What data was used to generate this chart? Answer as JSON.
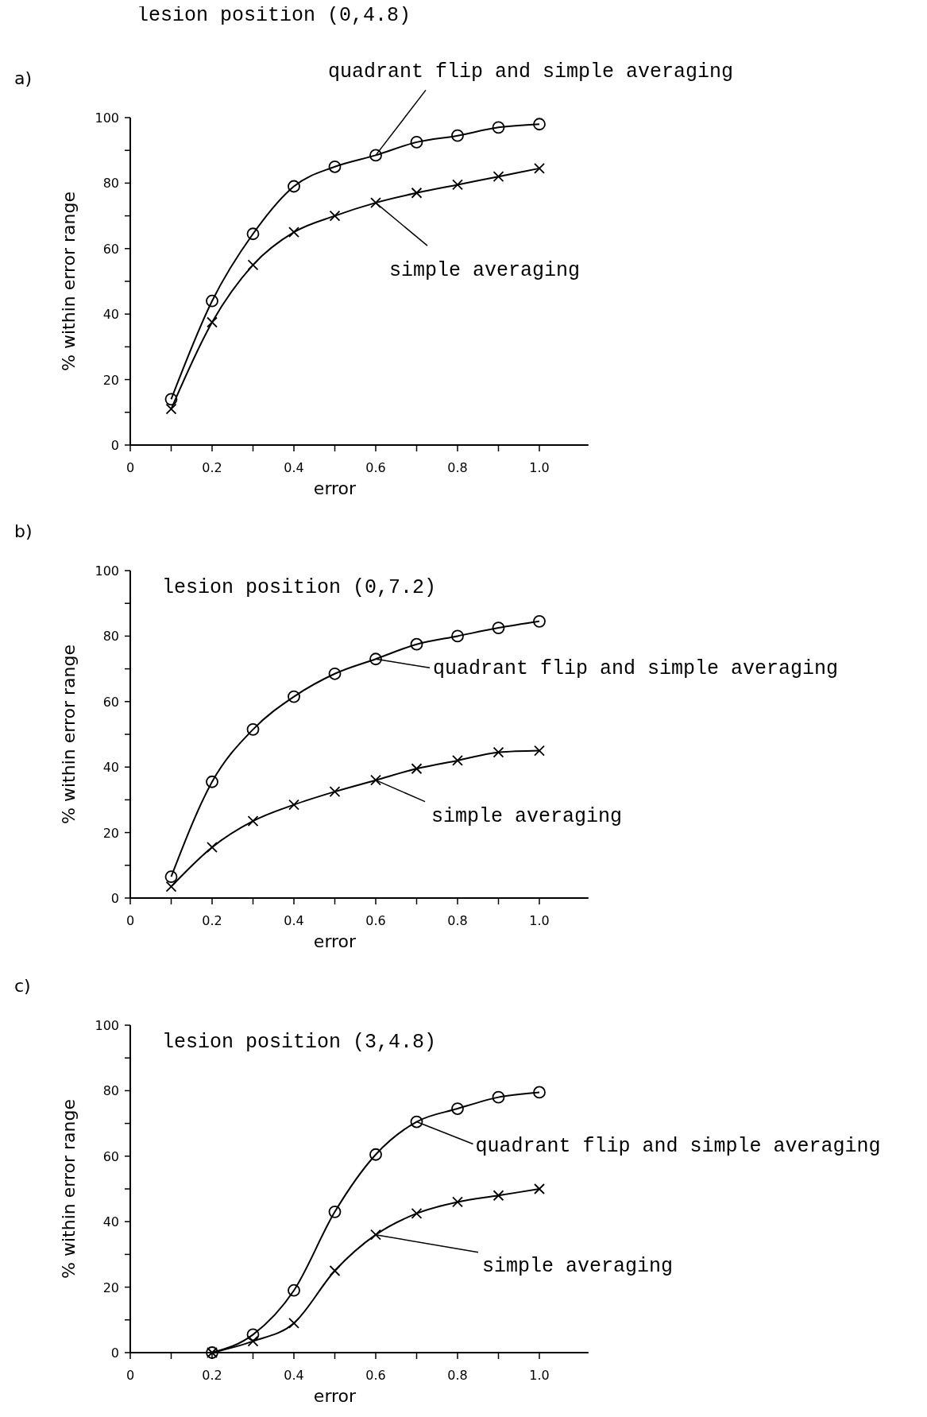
{
  "chart_data": [
    {
      "type": "line",
      "title": "lesion position (0,4.8)",
      "annotations": [
        "a)"
      ],
      "xlabel": "error",
      "ylabel": "% within error range",
      "x": [
        0.1,
        0.2,
        0.3,
        0.4,
        0.5,
        0.6,
        0.7,
        0.8,
        0.9,
        1.0
      ],
      "xlim": [
        0,
        1.12
      ],
      "ylim": [
        0,
        100
      ],
      "xticks": [
        0,
        {
          "value": 0.1,
          "label": null
        },
        0.2,
        {
          "value": 0.3,
          "label": null
        },
        0.4,
        {
          "value": 0.5,
          "label": null
        },
        0.6,
        {
          "value": 0.7,
          "label": null
        },
        0.8,
        {
          "value": 0.9,
          "label": null
        },
        {
          "value": 1,
          "label": "1.0"
        }
      ],
      "yticks": [
        0,
        {
          "value": 10,
          "label": null
        },
        20,
        {
          "value": 30,
          "label": null
        },
        40,
        {
          "value": 50,
          "label": null
        },
        60,
        {
          "value": 70,
          "label": null
        },
        80,
        {
          "value": 90,
          "label": null
        },
        100
      ],
      "series": [
        {
          "name": "quadrant flip and simple averaging",
          "color": "#000000",
          "marker": "circle",
          "values": [
            14,
            44,
            64.5,
            79,
            85,
            88.5,
            92.5,
            94.5,
            97,
            98
          ]
        },
        {
          "name": "simple averaging",
          "color": "#000000",
          "marker": "cross",
          "values": [
            11,
            37.5,
            55,
            65,
            70,
            74,
            77,
            79.5,
            82,
            84.5
          ]
        }
      ]
    },
    {
      "type": "line",
      "title": "lesion position (0,7.2)",
      "annotations": [
        "b)"
      ],
      "xlabel": "error",
      "ylabel": "% within error range",
      "x": [
        0.1,
        0.2,
        0.3,
        0.4,
        0.5,
        0.6,
        0.7,
        0.8,
        0.9,
        1.0
      ],
      "xlim": [
        0,
        1.12
      ],
      "ylim": [
        0,
        100
      ],
      "xticks": [
        0,
        {
          "value": 0.1,
          "label": null
        },
        0.2,
        {
          "value": 0.3,
          "label": null
        },
        0.4,
        {
          "value": 0.5,
          "label": null
        },
        0.6,
        {
          "value": 0.7,
          "label": null
        },
        0.8,
        {
          "value": 0.9,
          "label": null
        },
        {
          "value": 1,
          "label": "1.0"
        }
      ],
      "yticks": [
        0,
        {
          "value": 10,
          "label": null
        },
        20,
        {
          "value": 30,
          "label": null
        },
        40,
        {
          "value": 50,
          "label": null
        },
        60,
        {
          "value": 70,
          "label": null
        },
        80,
        {
          "value": 90,
          "label": null
        },
        100
      ],
      "series": [
        {
          "name": "quadrant flip and simple averaging",
          "color": "#000000",
          "marker": "circle",
          "values": [
            6.5,
            35.5,
            51.5,
            61.5,
            68.5,
            73,
            77.5,
            80,
            82.5,
            84.5
          ]
        },
        {
          "name": "simple averaging",
          "color": "#000000",
          "marker": "cross",
          "values": [
            3.5,
            15.5,
            23.5,
            28.5,
            32.5,
            36,
            39.5,
            42,
            44.5,
            45
          ]
        }
      ]
    },
    {
      "type": "line",
      "title": "lesion position (3,4.8)",
      "annotations": [
        "c)"
      ],
      "xlabel": "error",
      "ylabel": "% within error range",
      "x": [
        0.2,
        0.3,
        0.4,
        0.5,
        0.6,
        0.7,
        0.8,
        0.9,
        1.0
      ],
      "xlim": [
        0,
        1.12
      ],
      "ylim": [
        0,
        100
      ],
      "xticks": [
        0,
        {
          "value": 0.1,
          "label": null
        },
        0.2,
        {
          "value": 0.3,
          "label": null
        },
        0.4,
        {
          "value": 0.5,
          "label": null
        },
        0.6,
        {
          "value": 0.7,
          "label": null
        },
        0.8,
        {
          "value": 0.9,
          "label": null
        },
        {
          "value": 1,
          "label": "1.0"
        }
      ],
      "yticks": [
        0,
        {
          "value": 10,
          "label": null
        },
        20,
        {
          "value": 30,
          "label": null
        },
        40,
        {
          "value": 50,
          "label": null
        },
        60,
        {
          "value": 70,
          "label": null
        },
        80,
        {
          "value": 90,
          "label": null
        },
        100
      ],
      "series": [
        {
          "name": "quadrant flip and simple averaging",
          "color": "#000000",
          "marker": "circle",
          "values": [
            0,
            5.5,
            19,
            43,
            60.5,
            70.5,
            74.5,
            78,
            79.5
          ]
        },
        {
          "name": "simple averaging",
          "color": "#000000",
          "marker": "cross",
          "values": [
            0,
            3.5,
            9,
            25,
            36,
            42.5,
            46,
            48,
            50
          ]
        }
      ]
    }
  ]
}
